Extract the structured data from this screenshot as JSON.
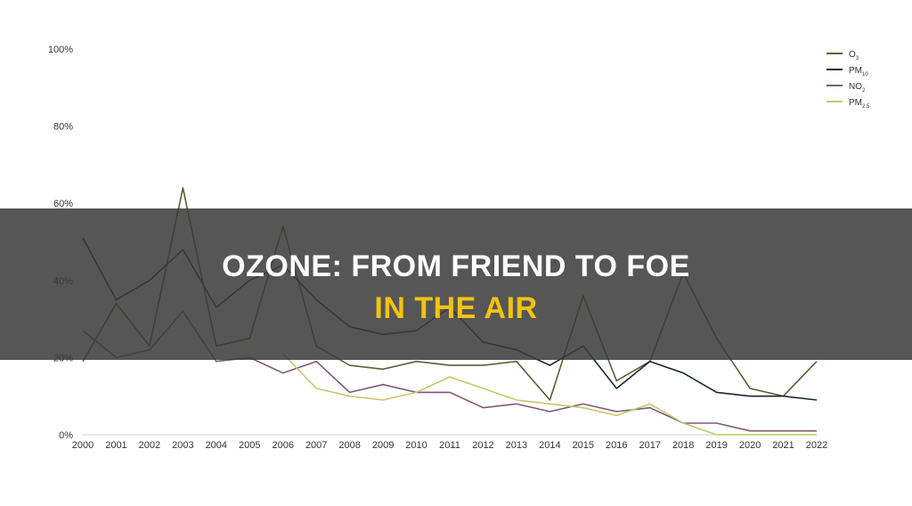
{
  "chart_data": {
    "type": "line",
    "x": [
      "2000",
      "2001",
      "2002",
      "2003",
      "2004",
      "2005",
      "2006",
      "2007",
      "2008",
      "2009",
      "2010",
      "2011",
      "2012",
      "2013",
      "2014",
      "2015",
      "2016",
      "2017",
      "2018",
      "2019",
      "2020",
      "2021",
      "2022"
    ],
    "ylim": [
      0,
      100
    ],
    "yticks": [
      "0%",
      "20%",
      "40%",
      "60%",
      "80%",
      "100%"
    ],
    "ytick_values": [
      0,
      20,
      40,
      60,
      80,
      100
    ],
    "grid": false,
    "legend_position": "top-right",
    "series": [
      {
        "name": "O",
        "name_subscript": "3",
        "color": "#5a6133",
        "values": [
          19,
          34,
          23,
          64,
          23,
          25,
          54,
          23,
          18,
          17,
          19,
          18,
          18,
          19,
          9,
          36,
          14,
          19,
          42,
          25,
          12,
          10,
          19
        ]
      },
      {
        "name": "PM",
        "name_subscript": "10",
        "color": "#1b2633",
        "values": [
          51,
          35,
          40,
          48,
          33,
          40,
          44,
          35,
          28,
          26,
          27,
          33,
          24,
          22,
          18,
          23,
          12,
          19,
          16,
          11,
          10,
          10,
          9
        ]
      },
      {
        "name": "NO",
        "name_subscript": "2",
        "color": "#7a5a79",
        "values": [
          27,
          20,
          22,
          32,
          19,
          20,
          16,
          19,
          11,
          13,
          11,
          11,
          7,
          8,
          6,
          8,
          6,
          7,
          3,
          3,
          1,
          1,
          1
        ]
      },
      {
        "name": "PM",
        "name_subscript": "2.5",
        "color": "#c2c96e",
        "values": [
          null,
          null,
          null,
          null,
          null,
          null,
          21,
          12,
          10,
          9,
          11,
          15,
          12,
          9,
          8,
          7,
          5,
          8,
          3,
          0,
          0,
          0,
          0
        ]
      }
    ]
  },
  "headline": {
    "line1": "OZONE: FROM FRIEND TO FOE",
    "line2": "IN THE AIR"
  }
}
